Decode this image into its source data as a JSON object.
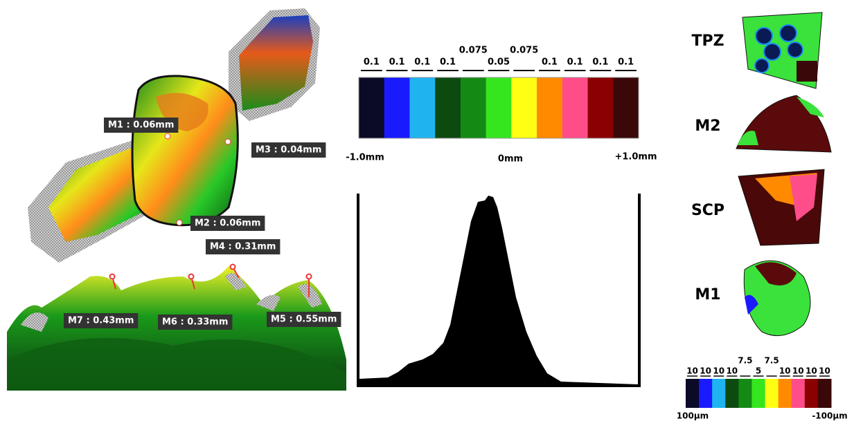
{
  "measurements": [
    "M1 : 0.06mm",
    "M3 : 0.04mm",
    "M2 : 0.06mm",
    "M4 : 0.31mm",
    "M7 : 0.43mm",
    "M6 : 0.33mm",
    "M5 : 0.55mm"
  ],
  "scale": {
    "segments": [
      {
        "label": "0.1",
        "color": "#0b0b28"
      },
      {
        "label": "0.1",
        "color": "#1a1aff"
      },
      {
        "label": "0.1",
        "color": "#1fb4f0"
      },
      {
        "label": "0.1",
        "color": "#0c4a10"
      },
      {
        "label": "0.075",
        "color": "#138a14"
      },
      {
        "label": "0.05",
        "color": "#35e61e"
      },
      {
        "label": "0.075",
        "color": "#ffff14"
      },
      {
        "label": "0.1",
        "color": "#ff8a00"
      },
      {
        "label": "0.1",
        "color": "#ff4d8a"
      },
      {
        "label": "0.1",
        "color": "#8b0000"
      },
      {
        "label": "0.1",
        "color": "#3a0808"
      }
    ],
    "min_label": "-1.0mm",
    "mid_label": "0mm",
    "max_label": "+1.0mm"
  },
  "regions": [
    "TPZ",
    "M2",
    "SCP",
    "M1"
  ],
  "small_scale": {
    "segments": [
      "10",
      "10",
      "10",
      "10",
      "7.5",
      "5",
      "7.5",
      "10",
      "10",
      "10",
      "10"
    ],
    "min_label": "100µm",
    "max_label": "-100µm"
  }
}
